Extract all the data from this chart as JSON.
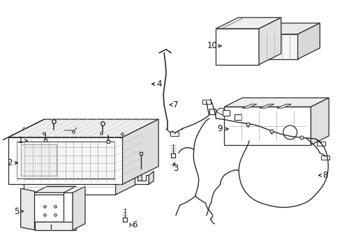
{
  "bg_color": "#ffffff",
  "line_color": "#2a2a2a",
  "lw": 0.9,
  "fig_width": 4.9,
  "fig_height": 3.6,
  "dpi": 100
}
